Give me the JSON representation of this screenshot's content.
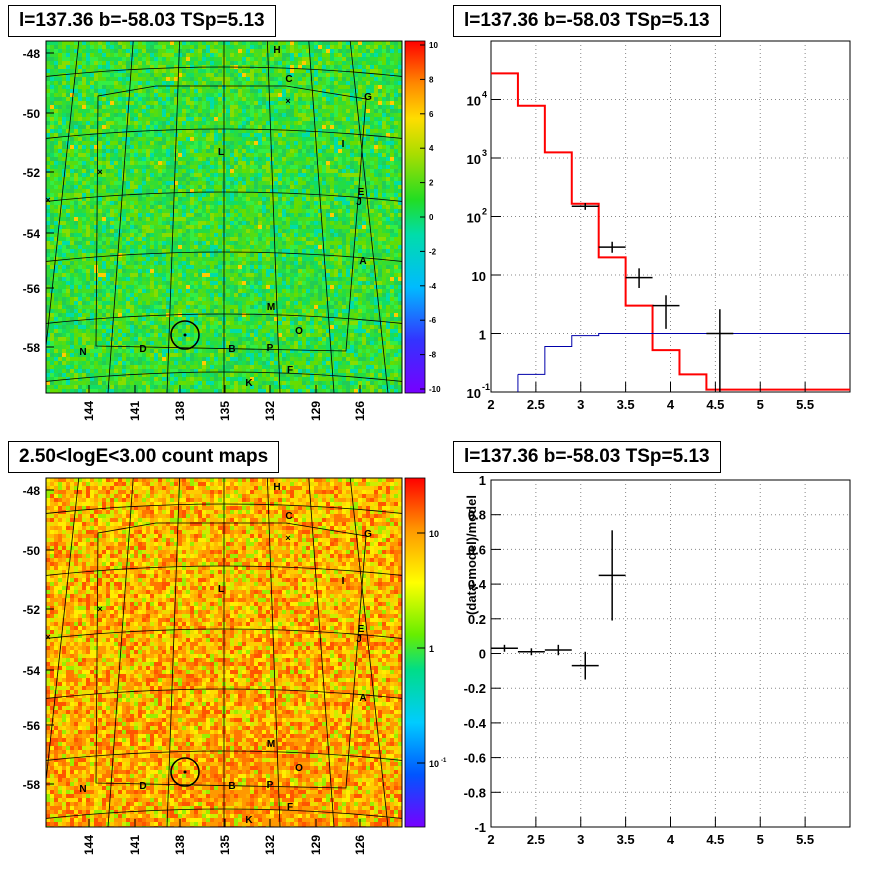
{
  "panels": {
    "tl_title": "l=137.36 b=-58.03 TSp=5.13",
    "tr_title": "l=137.36 b=-58.03 TSp=5.13",
    "bl_title": "2.50<logE<3.00 count maps",
    "br_title": "l=137.36 b=-58.03 TSp=5.13"
  },
  "maps": {
    "y_ticks": [
      "-48",
      "-50",
      "-52",
      "-54",
      "-56",
      "-58"
    ],
    "x_ticks": [
      "144",
      "141",
      "138",
      "135",
      "132",
      "129",
      "126"
    ],
    "sources": [
      "H",
      "C",
      "G",
      "I",
      "L",
      "E",
      "J",
      "A",
      "M",
      "O",
      "N",
      "D",
      "B",
      "P",
      "F",
      "K"
    ],
    "residual_colorbar_ticks": [
      "10",
      "8",
      "6",
      "4",
      "2",
      "0",
      "-2",
      "-4",
      "-6",
      "-8",
      "-10"
    ],
    "count_colorbar_ticks": [
      "10",
      "1",
      "10",
      "-1"
    ],
    "residual_colors": {
      "high": "#ff0000",
      "mid": "#22dd22",
      "low": "#7700ff"
    },
    "count_colors": {
      "high": "#ff0000",
      "mid": "#ffff00",
      "low": "#7700ff"
    }
  },
  "chart_data": [
    {
      "type": "step-line",
      "title": "l=137.36 b=-58.03 TSp=5.13",
      "xlim": [
        2,
        6
      ],
      "ylim": [
        0.1,
        100000
      ],
      "yscale": "log",
      "x_ticks": [
        "2",
        "2.5",
        "3",
        "3.5",
        "4",
        "4.5",
        "5",
        "5.5"
      ],
      "y_ticks": [
        {
          "base": "10",
          "exp": "4"
        },
        {
          "base": "10",
          "exp": "3"
        },
        {
          "base": "10",
          "exp": "2"
        },
        {
          "base": "10",
          "exp": ""
        },
        {
          "base": "1",
          "exp": ""
        },
        {
          "base": "10",
          "exp": "-1"
        }
      ],
      "grid": true,
      "series": [
        {
          "color": "#ff0000",
          "kind": "step",
          "edges": [
            2.0,
            2.3,
            2.6,
            2.9,
            3.2,
            3.5,
            3.8,
            4.1,
            4.4,
            6.0
          ],
          "values": [
            28000,
            7800,
            1250,
            165,
            20,
            3.0,
            0.52,
            0.2,
            0.11
          ]
        },
        {
          "color": "#0000aa",
          "kind": "step",
          "edges": [
            2.3,
            2.6,
            2.9,
            3.2,
            6.0
          ],
          "values": [
            0.2,
            0.6,
            0.92,
            1.0
          ]
        },
        {
          "color": "#000000",
          "kind": "errorbars",
          "points": [
            {
              "x": 3.05,
              "y": 150,
              "xerr": 0.15,
              "ylo": 130,
              "yhi": 170
            },
            {
              "x": 3.35,
              "y": 30,
              "xerr": 0.15,
              "ylo": 24,
              "yhi": 37
            },
            {
              "x": 3.65,
              "y": 9,
              "xerr": 0.15,
              "ylo": 6,
              "yhi": 13
            },
            {
              "x": 3.95,
              "y": 3,
              "xerr": 0.15,
              "ylo": 1.2,
              "yhi": 4.5
            },
            {
              "x": 4.55,
              "y": 1,
              "xerr": 0.15,
              "ylo": 0.1,
              "yhi": 2.6
            }
          ]
        }
      ]
    },
    {
      "type": "scatter",
      "title": "l=137.36 b=-58.03 TSp=5.13",
      "ylabel": "(data-model)/model",
      "xlim": [
        2,
        6
      ],
      "ylim": [
        -1,
        1
      ],
      "x_ticks": [
        "2",
        "2.5",
        "3",
        "3.5",
        "4",
        "4.5",
        "5",
        "5.5"
      ],
      "y_ticks": [
        "1",
        "0.8",
        "0.6",
        "0.4",
        "0.2",
        "0",
        "-0.2",
        "-0.4",
        "-0.6",
        "-0.8",
        "-1"
      ],
      "grid": true,
      "points": [
        {
          "x": 2.15,
          "y": 0.03,
          "xerr": 0.15,
          "yerr": 0.02
        },
        {
          "x": 2.45,
          "y": 0.01,
          "xerr": 0.15,
          "yerr": 0.02
        },
        {
          "x": 2.75,
          "y": 0.02,
          "xerr": 0.15,
          "yerr": 0.03
        },
        {
          "x": 3.05,
          "y": -0.07,
          "xerr": 0.15,
          "yerr": 0.08
        },
        {
          "x": 3.35,
          "y": 0.45,
          "xerr": 0.15,
          "yerr": 0.26
        }
      ]
    }
  ]
}
